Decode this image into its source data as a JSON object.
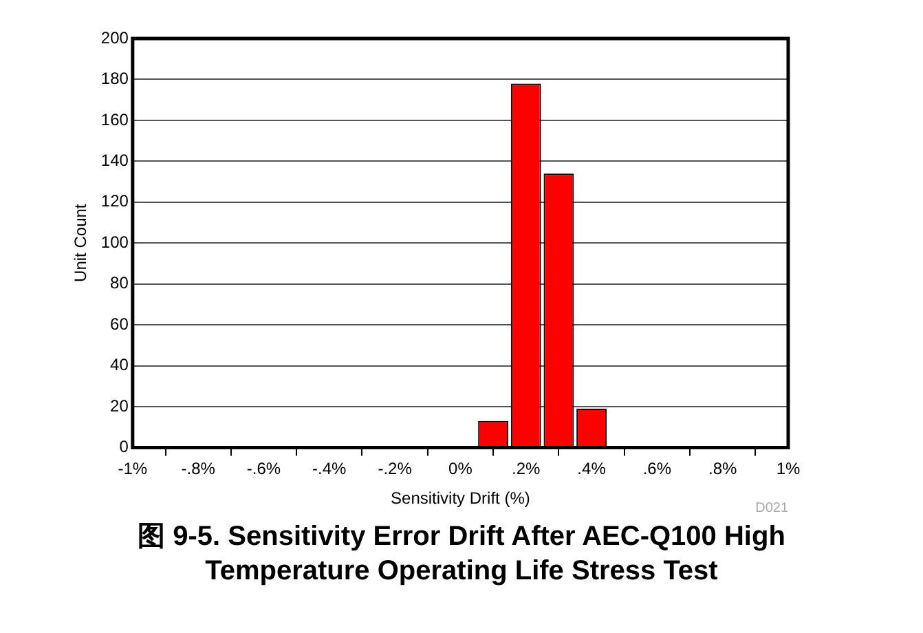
{
  "chart_data": {
    "type": "histogram",
    "title": "图 9-5. Sensitivity Error Drift After AEC-Q100 High Temperature Operating Life Stress Test",
    "xlabel": "Sensitivity Drift (%)",
    "ylabel": "Unit Count",
    "bins": [
      -0.95,
      -0.85,
      -0.75,
      -0.65,
      -0.55,
      -0.45,
      -0.35,
      -0.25,
      -0.15,
      -0.05,
      0.05,
      0.15,
      0.25,
      0.35,
      0.45,
      0.55,
      0.65,
      0.75,
      0.85,
      0.95
    ],
    "values": [
      0,
      0,
      0,
      0,
      0,
      0,
      0,
      0,
      0,
      0,
      13,
      178,
      134,
      19,
      0,
      0,
      0,
      0,
      0
    ],
    "color": "#ff0000",
    "xlim": [
      -1,
      1
    ],
    "xticks": [
      {
        "value": -1,
        "label": "-1%"
      },
      {
        "value": -0.8,
        "label": "-.8%"
      },
      {
        "value": -0.6,
        "label": "-.6%"
      },
      {
        "value": -0.4,
        "label": "-.4%"
      },
      {
        "value": -0.2,
        "label": "-.2%"
      },
      {
        "value": 0,
        "label": "0%"
      },
      {
        "value": 0.2,
        "label": ".2%"
      },
      {
        "value": 0.4,
        "label": ".4%"
      },
      {
        "value": 0.6,
        "label": ".6%"
      },
      {
        "value": 0.8,
        "label": ".8%"
      },
      {
        "value": 1,
        "label": "1%"
      }
    ],
    "ylim": [
      0,
      200
    ],
    "yticks": [
      0,
      20,
      40,
      60,
      80,
      100,
      120,
      140,
      160,
      180,
      200
    ],
    "grid": "y",
    "annotations": [
      "D021"
    ]
  }
}
